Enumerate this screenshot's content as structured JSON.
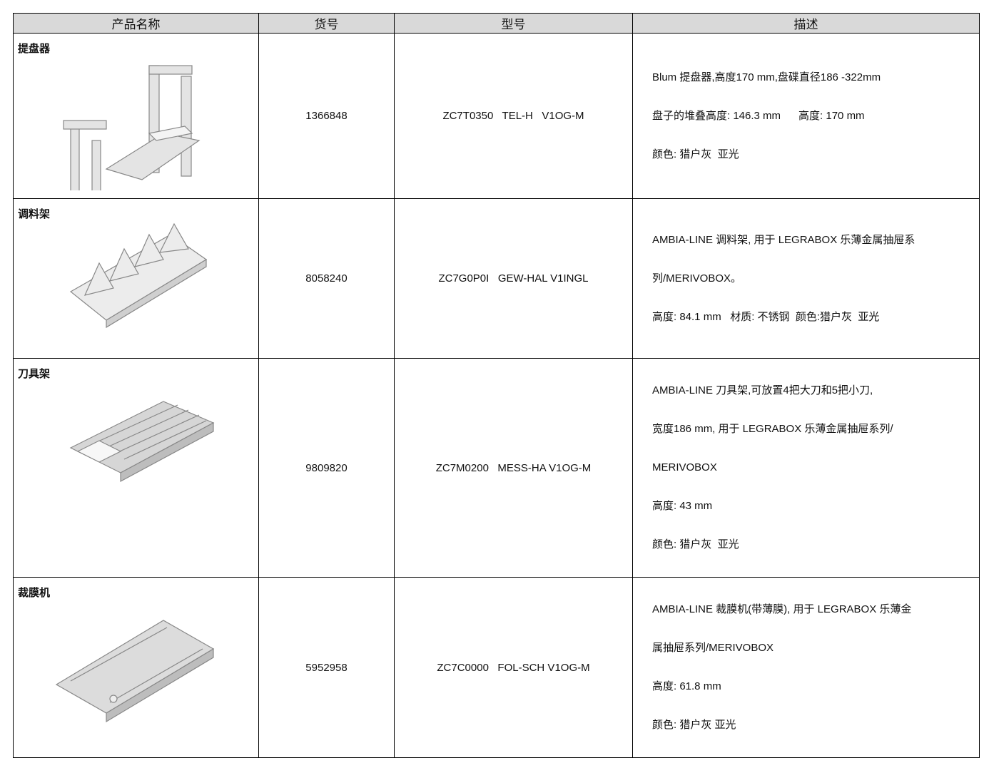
{
  "table": {
    "header": [
      "产品名称",
      "货号",
      "型号",
      "描述"
    ],
    "rows": [
      {
        "name": "提盘器",
        "number": "1366848",
        "model": "ZC7T0350   TEL-H   V1OG-M",
        "description": [
          "Blum 提盘器,高度170 mm,盘碟直径186 -322mm",
          "盘子的堆叠高度: 146.3 mm      高度: 170 mm",
          "颜色: 猎户灰  亚光"
        ]
      },
      {
        "name": "调料架",
        "number": "8058240",
        "model": "ZC7G0P0I   GEW-HAL V1INGL",
        "description": [
          "AMBIA-LINE 调料架, 用于 LEGRABOX 乐薄金属抽屉系",
          "列/MERIVOBOX。",
          "高度: 84.1 mm   材质: 不锈钢  颜色:猎户灰  亚光"
        ]
      },
      {
        "name": "刀具架",
        "number": "9809820",
        "model": "ZC7M0200   MESS-HA V1OG-M",
        "description": [
          "AMBIA-LINE 刀具架,可放置4把大刀和5把小刀,",
          "宽度186 mm, 用于 LEGRABOX 乐薄金属抽屉系列/",
          "MERIVOBOX",
          "高度: 43 mm",
          "颜色: 猎户灰  亚光"
        ]
      },
      {
        "name": "裁膜机",
        "number": "5952958",
        "model": "ZC7C0000   FOL-SCH V1OG-M",
        "description": [
          "AMBIA-LINE 裁膜机(带薄膜), 用于 LEGRABOX 乐薄金",
          "属抽屉系列/MERIVOBOX",
          "高度: 61.8 mm",
          "颜色: 猎户灰 亚光"
        ]
      }
    ]
  }
}
